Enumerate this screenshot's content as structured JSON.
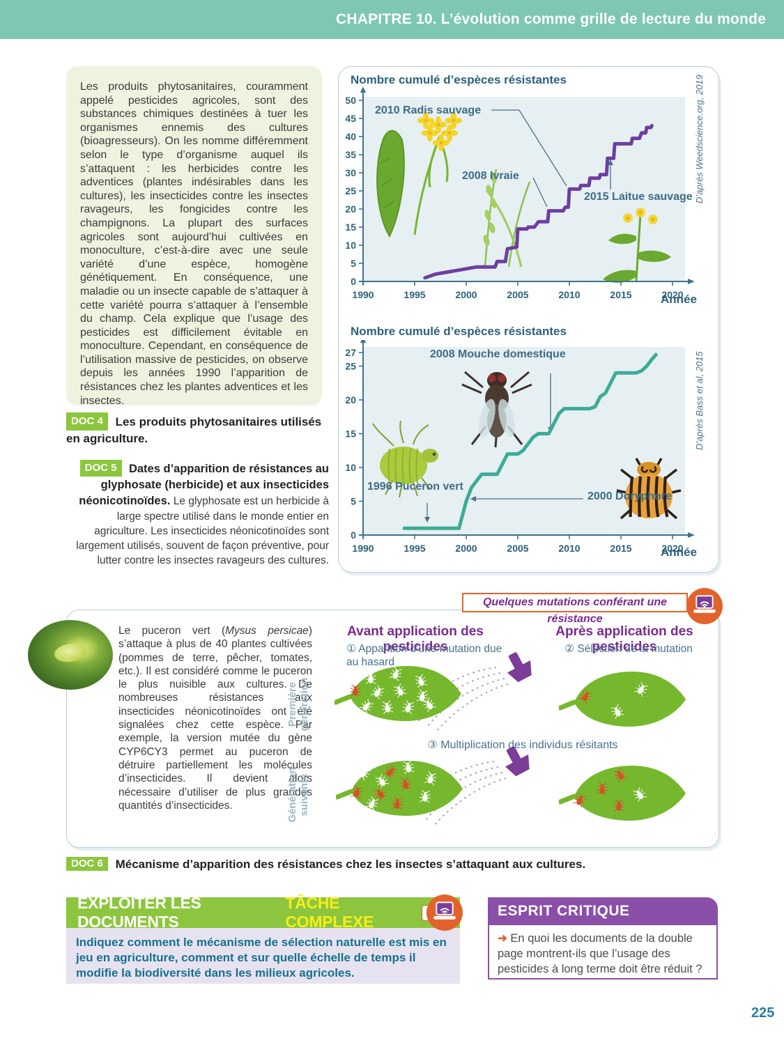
{
  "page": {
    "chapter_header": "CHAPITRE 10. L’évolution comme grille de lecture du monde",
    "page_number": "225"
  },
  "intro": {
    "text": "Les produits phytosanitaires, couramment appelé pesticides agricoles, sont des substances chimiques destinées à tuer les organismes ennemis des cultures (bioagresseurs). On les nomme différemment selon le type d’organisme auquel ils s’attaquent : les herbicides contre les adventices (plantes indésirables dans les cultures), les insecticides contre les insectes ravageurs, les fongicides contre les champignons. La plupart des surfaces agricoles sont aujourd’hui cultivées en monoculture, c’est-à-dire avec une seule variété d’une espèce, homogène génétiquement. En conséquence, une maladie ou un insecte capable de s’attaquer à cette variété pourra s’attaquer à l’ensemble du champ. Cela explique que l’usage des pesticides est difficilement évitable en monoculture. Cependant, en conséquence de l’utilisation massive de pesticides, on observe depuis les années 1990 l’apparition de résistances chez les plantes adventices et les insectes."
  },
  "doc4": {
    "badge": "DOC 4",
    "caption": "Les produits phytosanitaires utilisés en agriculture."
  },
  "doc5": {
    "badge": "DOC 5",
    "caption_bold": "Dates d’apparition de résistances au glyphosate (herbicide) et aux insecticides néonicotinoïdes.",
    "caption_rest": " Le glyphosate est un herbicide à large spectre utilisé dans le monde entier en agriculture. Les insecticides néonicotinoïdes sont largement utilisés, souvent de façon préventive, pour lutter contre les insectes ravageurs des cultures."
  },
  "chart_data": [
    {
      "type": "line",
      "title": "Nombre cumulé d’espèces résistantes",
      "source": "D’après Weedscience.org, 2019",
      "xlabel": "Année",
      "line_color": "#6b3fa0",
      "xlim": [
        1990,
        2021
      ],
      "ylim": [
        0,
        52
      ],
      "x_ticks": [
        1990,
        1995,
        2000,
        2005,
        2010,
        2015,
        2020
      ],
      "y_ticks": [
        0,
        5,
        10,
        15,
        20,
        25,
        30,
        35,
        40,
        45,
        50
      ],
      "x": [
        1996,
        1996.5,
        1997,
        1998,
        1999,
        2000,
        2001,
        2002.8,
        2003,
        2003.8,
        2004,
        2004.9,
        2005,
        2005.9,
        2006,
        2006.6,
        2007,
        2007.9,
        2008,
        2009.4,
        2009.6,
        2009.9,
        2010,
        2011,
        2011.1,
        2011.9,
        2012,
        2012.9,
        2013,
        2013.6,
        2013.7,
        2014.3,
        2014.4,
        2016,
        2016.1,
        2016.8,
        2017,
        2017.4,
        2017.5,
        2017.9,
        2018
      ],
      "y": [
        1,
        1.5,
        2,
        2.5,
        3,
        3.5,
        4,
        4,
        5.5,
        5.5,
        9,
        9.5,
        14.5,
        14.5,
        15,
        15,
        16.5,
        16.5,
        19.5,
        19.5,
        20.5,
        20.5,
        25.5,
        25.5,
        26.5,
        26.5,
        28.5,
        28.5,
        29.5,
        29.5,
        34,
        34,
        38,
        38,
        39.5,
        39.5,
        41,
        41,
        42.5,
        42.5,
        43
      ],
      "annotations": [
        "2010 Radis sauvage",
        "2008 Ivraie",
        "2015 Laitue sauvage"
      ]
    },
    {
      "type": "line",
      "title": "Nombre cumulé d’espèces résistantes",
      "source": "D’après Bass et al, 2015",
      "xlabel": "Année",
      "line_color": "#3cab97",
      "xlim": [
        1990,
        2021
      ],
      "ylim": [
        0,
        28
      ],
      "x_ticks": [
        1990,
        1995,
        2000,
        2005,
        2010,
        2015,
        2020
      ],
      "y_ticks": [
        0,
        5,
        10,
        15,
        20,
        25,
        27
      ],
      "x": [
        1994,
        1999.3,
        2000,
        2000.5,
        2001,
        2001.5,
        2003,
        2003.5,
        2004,
        2005,
        2005.5,
        2006,
        2006.5,
        2007,
        2008,
        2008.5,
        2009,
        2009.5,
        2012,
        2012.5,
        2013,
        2013.5,
        2014,
        2014.5,
        2016.5,
        2017,
        2017.5,
        2018,
        2018.4
      ],
      "y": [
        1,
        1,
        5,
        7,
        8,
        9,
        9,
        10.5,
        12,
        12,
        12.5,
        13.5,
        14.5,
        15,
        15,
        16.5,
        18,
        18.7,
        18.7,
        19,
        20.5,
        21,
        22.5,
        24,
        24,
        24.3,
        25,
        26,
        26.7
      ],
      "annotations": [
        "2008 Mouche domestique",
        "1996 Puceron vert",
        "2000 Doryphore"
      ]
    }
  ],
  "mutation": {
    "tab_label": "Quelques mutations conférant une résistance",
    "para_before": "Le puceron vert (",
    "para_italic": "Mysus persicae",
    "para_after": ") s’attaque à plus de 40 plantes cultivées (pommes de terre, pêcher, tomates, etc.). Il est considéré comme le puceron le plus nuisible aux cultures. De nombreuses résistances aux insecticides néonicotinoïdes ont été signalées chez cette espèce. Par exemple, la version mutée du gène CYP6CY3 permet au puceron de détruire partiellement les molécules d’insecticides. Il devient alors nécessaire d’utiliser de plus grandes quantités d’insecticides.",
    "col1_header": "Avant application des pesticides",
    "col2_header": "Après application des pesticides",
    "step1": "① Apparition d’une mutation due au hasard",
    "step2": "② Sélection de la mutation",
    "step3": "③ Multiplication des individus résitants",
    "gen1": "Première génération",
    "gen2": "Génération suivante",
    "leaves": [
      {
        "normal": 10,
        "mutant": 1
      },
      {
        "normal": 2,
        "mutant": 1
      },
      {
        "normal": 6,
        "mutant": 5
      },
      {
        "normal": 1,
        "mutant": 4
      }
    ],
    "colors": {
      "leaf_green": "#76b82d",
      "insect_normal": "#ffffff",
      "insect_mutant": "#d84f2a",
      "nozzle_purple": "#7c3d98"
    }
  },
  "doc6": {
    "badge": "DOC 6",
    "caption": "Mécanisme d’apparition des résistances chez les insectes s’attaquant aux cultures."
  },
  "exploit_box": {
    "title": "EXPLOITER LES DOCUMENTS",
    "subtitle": "TÂCHE COMPLEXE",
    "aide_label": "Aide",
    "task": "Indiquez comment le mécanisme de sélection naturelle est mis en jeu en agriculture, comment et sur quelle échelle de temps il modifie la biodiversité dans les milieux agricoles."
  },
  "esprit_box": {
    "title": "ESPRIT CRITIQUE",
    "arrow": "➜",
    "question": "En quoi les documents de la double page montrent-ils que l’usage des pesticides à long terme doit être réduit ?"
  }
}
